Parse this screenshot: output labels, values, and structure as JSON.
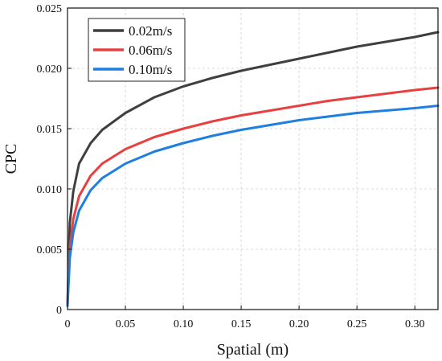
{
  "chart_data": {
    "type": "line",
    "title": "",
    "xlabel": "Spatial (m)",
    "ylabel": "CPC",
    "xlim": [
      0,
      0.32
    ],
    "ylim": [
      0,
      0.025
    ],
    "x_ticks": [
      0,
      0.05,
      0.1,
      0.15,
      0.2,
      0.25,
      0.3
    ],
    "x_tick_labels": [
      "0",
      "0.05",
      "0.10",
      "0.15",
      "0.20",
      "0.25",
      "0.30"
    ],
    "y_ticks": [
      0,
      0.005,
      0.01,
      0.015,
      0.02,
      0.025
    ],
    "y_tick_labels": [
      "0",
      "0.005",
      "0.010",
      "0.015",
      "0.020",
      "0.025"
    ],
    "grid": true,
    "legend_position": "top-left",
    "series": [
      {
        "name": "0.02m/s",
        "color": "#3f3f3f",
        "x": [
          0,
          0.002,
          0.005,
          0.01,
          0.02,
          0.03,
          0.05,
          0.075,
          0.1,
          0.125,
          0.15,
          0.175,
          0.2,
          0.225,
          0.25,
          0.275,
          0.3,
          0.32
        ],
        "y": [
          0.0005,
          0.0072,
          0.0098,
          0.0121,
          0.0138,
          0.0149,
          0.0163,
          0.0176,
          0.0185,
          0.0192,
          0.0198,
          0.0203,
          0.0208,
          0.0213,
          0.0218,
          0.0222,
          0.0226,
          0.023
        ]
      },
      {
        "name": "0.06m/s",
        "color": "#e8403f",
        "x": [
          0,
          0.002,
          0.005,
          0.01,
          0.02,
          0.03,
          0.05,
          0.075,
          0.1,
          0.125,
          0.15,
          0.175,
          0.2,
          0.225,
          0.25,
          0.275,
          0.3,
          0.32
        ],
        "y": [
          0.0004,
          0.0052,
          0.0075,
          0.0094,
          0.0111,
          0.0121,
          0.0133,
          0.0143,
          0.015,
          0.0156,
          0.0161,
          0.0165,
          0.0169,
          0.0173,
          0.0176,
          0.0179,
          0.0182,
          0.0184
        ]
      },
      {
        "name": "0.10m/s",
        "color": "#1e7fe0",
        "x": [
          0,
          0.002,
          0.005,
          0.01,
          0.02,
          0.03,
          0.05,
          0.075,
          0.1,
          0.125,
          0.15,
          0.175,
          0.2,
          0.225,
          0.25,
          0.275,
          0.3,
          0.32
        ],
        "y": [
          0.0003,
          0.0043,
          0.0064,
          0.0082,
          0.0099,
          0.0109,
          0.0121,
          0.0131,
          0.0138,
          0.0144,
          0.0149,
          0.0153,
          0.0157,
          0.016,
          0.0163,
          0.0165,
          0.0167,
          0.0169
        ]
      }
    ]
  }
}
